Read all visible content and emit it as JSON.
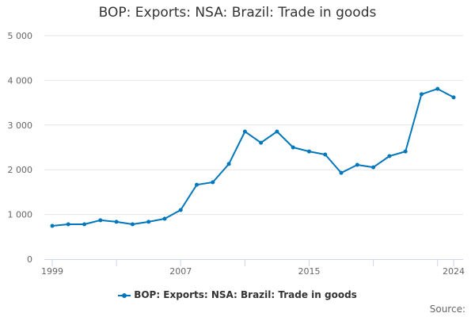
{
  "title": "BOP: Exports: NSA: Brazil: Trade in goods",
  "legend": {
    "label": "BOP: Exports: NSA: Brazil: Trade in goods"
  },
  "source": {
    "label": "Source:"
  },
  "colors": {
    "series": "#0077bb",
    "grid": "#e6e6e6",
    "axis": "#ccd6eb"
  },
  "chart_data": {
    "type": "line",
    "title": "BOP: Exports: NSA: Brazil: Trade in goods",
    "xlabel": "",
    "ylabel": "",
    "ylim": [
      0,
      5000
    ],
    "yticks": [
      "0",
      "1 000",
      "2 000",
      "3 000",
      "4 000",
      "5 000"
    ],
    "xticks": [
      "1999",
      "2007",
      "2015",
      "2024"
    ],
    "grid": true,
    "legend_position": "bottom",
    "x": [
      1999,
      2000,
      2001,
      2002,
      2003,
      2004,
      2005,
      2006,
      2007,
      2008,
      2009,
      2010,
      2011,
      2012,
      2013,
      2014,
      2015,
      2016,
      2017,
      2018,
      2019,
      2020,
      2021,
      2022,
      2023,
      2024
    ],
    "series": [
      {
        "name": "BOP: Exports: NSA: Brazil: Trade in goods",
        "values": [
          745,
          780,
          780,
          870,
          835,
          780,
          835,
          905,
          1100,
          1665,
          1720,
          2130,
          2855,
          2605,
          2855,
          2500,
          2410,
          2340,
          1930,
          2110,
          2055,
          2305,
          2410,
          3690,
          3810,
          3620
        ]
      }
    ]
  }
}
